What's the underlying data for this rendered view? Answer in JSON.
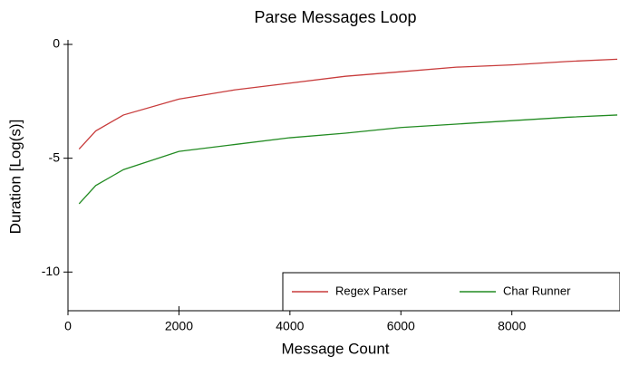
{
  "chart_data": {
    "type": "line",
    "title": "Parse Messages Loop",
    "x_label": "Message Count",
    "y_label": "Duration [Log(s)]",
    "x": [
      200,
      500,
      1000,
      2000,
      3000,
      4000,
      5000,
      6000,
      7000,
      8000,
      9000,
      9900
    ],
    "series": [
      {
        "name": "Regex Parser",
        "color": "#c83c3c",
        "values": [
          -4.6,
          -3.8,
          -3.1,
          -2.4,
          -2.0,
          -1.7,
          -1.4,
          -1.2,
          -1.0,
          -0.9,
          -0.75,
          -0.65
        ]
      },
      {
        "name": "Char Runner",
        "color": "#228b22",
        "values": [
          -7.0,
          -6.2,
          -5.5,
          -4.7,
          -4.4,
          -4.1,
          -3.9,
          -3.65,
          -3.5,
          -3.35,
          -3.2,
          -3.1
        ]
      }
    ],
    "xlim": [
      0,
      9900
    ],
    "xticks": [
      0,
      2000,
      4000,
      6000,
      8000
    ],
    "ylim": [
      -11.7,
      0.2
    ],
    "yticks": [
      0,
      -5,
      -10
    ],
    "legend": "lower right"
  }
}
